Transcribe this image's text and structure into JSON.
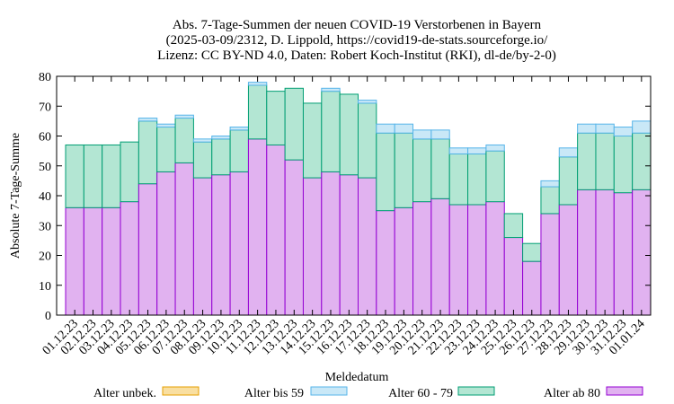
{
  "chart_data": {
    "type": "bar",
    "stacked": true,
    "title_lines": [
      "Abs. 7-Tage-Summen der neuen COVID-19 Verstorbenen in Bayern",
      "(2025-03-09/2312, D. Lippold, https://covid19-de-stats.sourceforge.io/",
      "Lizenz: CC BY-ND 4.0, Daten: Robert Koch-Institut (RKI), dl-de/by-2-0)"
    ],
    "xlabel": "Meldedatum",
    "ylabel": "Absolute 7-Tage-Summe",
    "ylim": [
      0,
      80
    ],
    "yticks": [
      0,
      10,
      20,
      30,
      40,
      50,
      60,
      70,
      80
    ],
    "grid": false,
    "legend_position": "bottom",
    "categories": [
      "01.12.23",
      "02.12.23",
      "03.12.23",
      "04.12.23",
      "05.12.23",
      "06.12.23",
      "07.12.23",
      "08.12.23",
      "09.12.23",
      "10.12.23",
      "11.12.23",
      "12.12.23",
      "13.12.23",
      "14.12.23",
      "15.12.23",
      "16.12.23",
      "17.12.23",
      "18.12.23",
      "19.12.23",
      "20.12.23",
      "21.12.23",
      "22.12.23",
      "23.12.23",
      "24.12.23",
      "25.12.23",
      "26.12.23",
      "27.12.23",
      "28.12.23",
      "29.12.23",
      "30.12.23",
      "31.12.23",
      "01.01.24"
    ],
    "series": [
      {
        "name": "Alter ab 80",
        "fill": "#e1b2f0",
        "stroke": "#9400d3",
        "values": [
          36,
          36,
          36,
          38,
          44,
          48,
          51,
          46,
          47,
          48,
          59,
          57,
          52,
          46,
          48,
          47,
          46,
          35,
          36,
          38,
          39,
          37,
          37,
          38,
          26,
          18,
          34,
          37,
          42,
          42,
          41,
          42
        ]
      },
      {
        "name": "Alter 60 - 79",
        "fill": "#b3e6d3",
        "stroke": "#009e73",
        "values": [
          21,
          21,
          21,
          20,
          21,
          15,
          15,
          12,
          12,
          14,
          18,
          18,
          24,
          25,
          27,
          27,
          25,
          26,
          25,
          21,
          20,
          17,
          17,
          17,
          8,
          6,
          9,
          16,
          19,
          19,
          19,
          19
        ]
      },
      {
        "name": "Alter bis 59",
        "fill": "#c9e8f7",
        "stroke": "#56b4e9",
        "values": [
          0,
          0,
          0,
          0,
          1,
          1,
          1,
          1,
          1,
          1,
          1,
          0,
          0,
          0,
          1,
          0,
          1,
          3,
          3,
          3,
          3,
          2,
          2,
          2,
          0,
          0,
          2,
          3,
          3,
          3,
          3,
          4
        ]
      },
      {
        "name": "Alter unbek.",
        "fill": "#f9dfa1",
        "stroke": "#e69f00",
        "values": [
          0,
          0,
          0,
          0,
          0,
          0,
          0,
          0,
          0,
          0,
          0,
          0,
          0,
          0,
          0,
          0,
          0,
          0,
          0,
          0,
          0,
          0,
          0,
          0,
          0,
          0,
          0,
          0,
          0,
          0,
          0,
          0
        ]
      }
    ],
    "legend_order": [
      "Alter unbek.",
      "Alter bis 59",
      "Alter 60 - 79",
      "Alter ab 80"
    ]
  }
}
